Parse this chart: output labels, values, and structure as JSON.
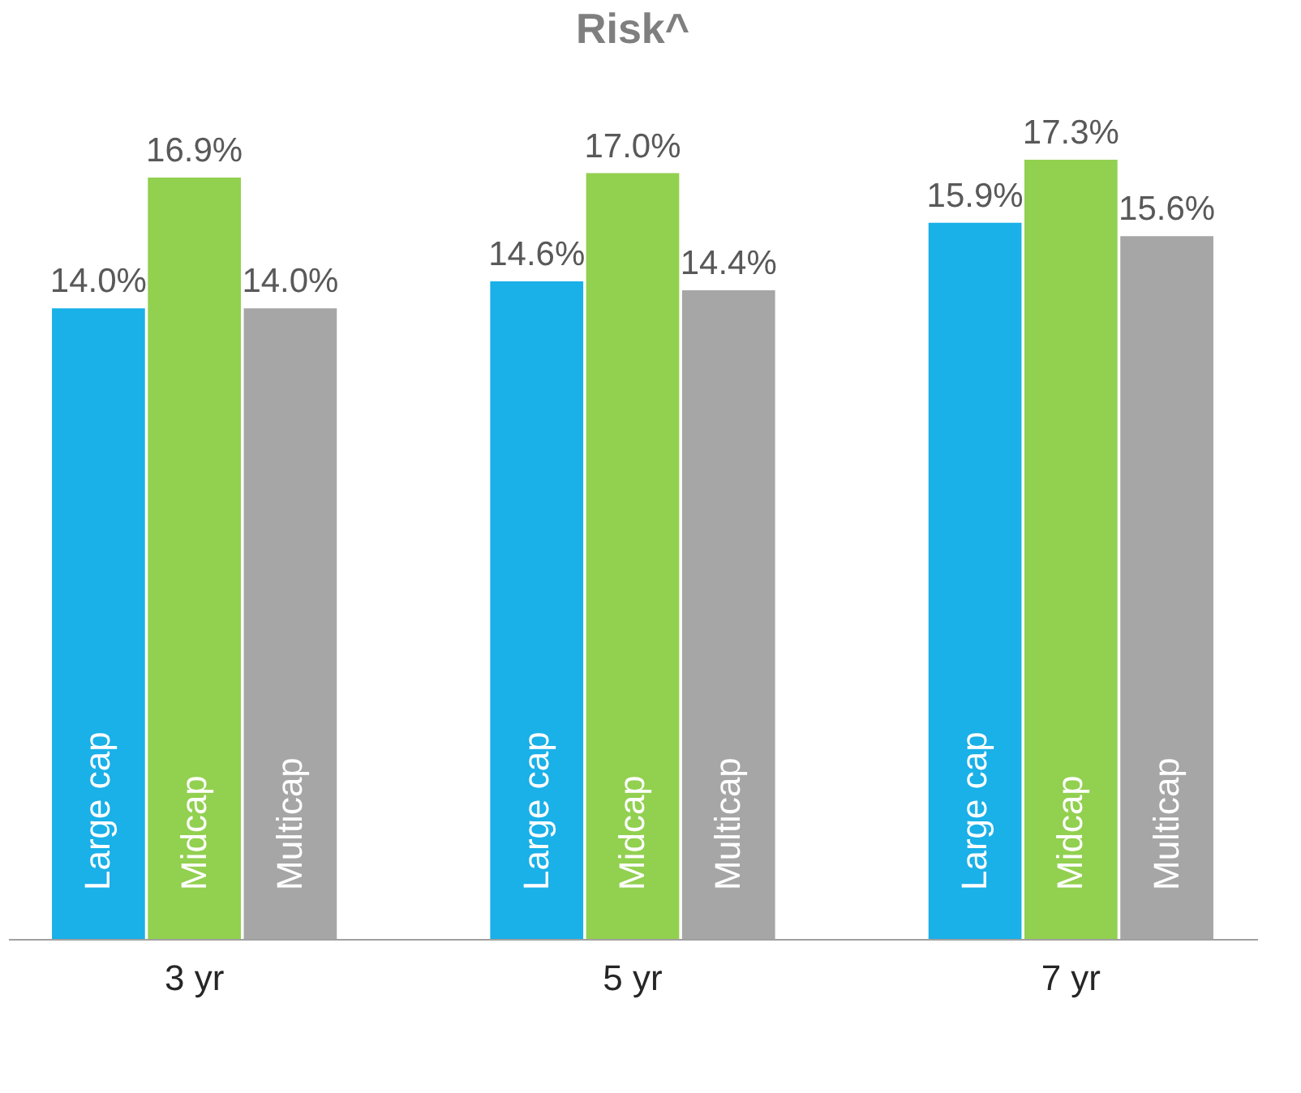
{
  "chart_data": {
    "type": "bar",
    "title": "Risk^",
    "categories": [
      "3 yr",
      "5 yr",
      "7 yr"
    ],
    "series": [
      {
        "name": "Large cap",
        "color": "#1ab0e8",
        "values": [
          14.0,
          14.6,
          15.9
        ],
        "value_labels": [
          "14.0%",
          "14.6%",
          "15.9%"
        ]
      },
      {
        "name": "Midcap",
        "color": "#92d050",
        "values": [
          16.9,
          17.0,
          17.3
        ],
        "value_labels": [
          "16.9%",
          "17.0%",
          "17.3%"
        ]
      },
      {
        "name": "Multicap",
        "color": "#a6a6a6",
        "values": [
          14.0,
          14.4,
          15.6
        ],
        "value_labels": [
          "14.0%",
          "14.4%",
          "15.6%"
        ]
      }
    ],
    "legend": false,
    "grid": false,
    "tick_labels": "x"
  }
}
